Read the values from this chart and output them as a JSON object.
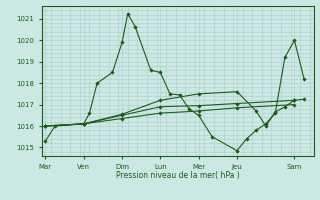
{
  "background_color": "#cce8e4",
  "grid_color": "#aacccc",
  "line_color": "#1a5e1a",
  "ylabel": "Pression niveau de la mer( hPa )",
  "ylim": [
    1014.6,
    1021.6
  ],
  "yticks": [
    1015,
    1016,
    1017,
    1018,
    1019,
    1020,
    1021
  ],
  "day_labels": [
    "Mar",
    "Ven",
    "Dim",
    "Lun",
    "Mer",
    "Jeu",
    "Sam"
  ],
  "day_positions": [
    0,
    2,
    4,
    6,
    8,
    10,
    13
  ],
  "xlim": [
    -0.2,
    14.0
  ],
  "series": [
    {
      "x": [
        0,
        0.5,
        2,
        2.3,
        2.7,
        3.5,
        4.0,
        4.3,
        4.7,
        5.5,
        6,
        6.5,
        7,
        7.5,
        8,
        8.7,
        10,
        10.5,
        11,
        11.5,
        12,
        12.5,
        13,
        13.5
      ],
      "y": [
        1015.3,
        1016.0,
        1016.1,
        1016.6,
        1018.0,
        1018.5,
        1019.9,
        1021.25,
        1020.6,
        1018.6,
        1018.5,
        1017.5,
        1017.45,
        1016.8,
        1016.5,
        1015.5,
        1014.85,
        1015.4,
        1015.8,
        1016.1,
        1016.6,
        1019.2,
        1020.0,
        1018.2
      ]
    },
    {
      "x": [
        0,
        2,
        4,
        6,
        8,
        10,
        13
      ],
      "y": [
        1016.0,
        1016.1,
        1016.5,
        1016.9,
        1016.95,
        1017.05,
        1017.2
      ]
    },
    {
      "x": [
        0,
        2,
        4,
        6,
        8,
        10,
        13
      ],
      "y": [
        1016.0,
        1016.1,
        1016.35,
        1016.6,
        1016.7,
        1016.85,
        1017.0
      ]
    },
    {
      "x": [
        0,
        2,
        4,
        6,
        8,
        10,
        11,
        11.5,
        12,
        12.5,
        13,
        13.5
      ],
      "y": [
        1016.0,
        1016.1,
        1016.55,
        1017.2,
        1017.5,
        1017.6,
        1016.7,
        1016.0,
        1016.65,
        1016.9,
        1017.2,
        1017.25
      ]
    }
  ]
}
